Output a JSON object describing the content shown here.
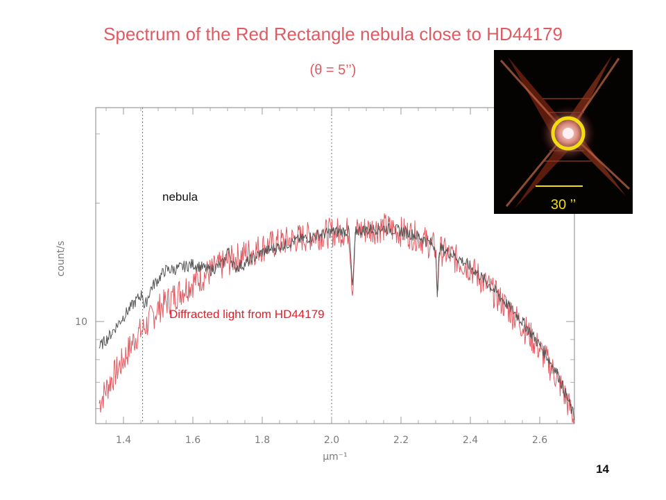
{
  "slide": {
    "title": "Spectrum of the Red Rectangle nebula close to HD44179",
    "subtitle": "(θ = 5’’)",
    "page_number": "14"
  },
  "inset": {
    "scale_label": "30 ’’",
    "circle_color": "#f3dd10",
    "description": "Image of the Red Rectangle nebula, X-shaped bipolar nebula with central star"
  },
  "chart_data": {
    "type": "line",
    "xlabel": "μm⁻¹",
    "ylabel": "count/s",
    "xlim": [
      1.32,
      2.7
    ],
    "ylim_log": [
      5.5,
      35
    ],
    "yscale": "log",
    "x_ticks": [
      "1.4",
      "1.6",
      "1.8",
      "2.0",
      "2.2",
      "2.4",
      "2.6"
    ],
    "y_ticks": [
      "10"
    ],
    "vertical_dotted_lines": [
      1.455,
      2.0
    ],
    "series": [
      {
        "name": "nebula",
        "color": "#555555",
        "points": [
          [
            1.33,
            8.6
          ],
          [
            1.36,
            9.2
          ],
          [
            1.4,
            10.3
          ],
          [
            1.44,
            11.4
          ],
          [
            1.455,
            11.8
          ],
          [
            1.46,
            10.8
          ],
          [
            1.48,
            12.2
          ],
          [
            1.5,
            12.8
          ],
          [
            1.52,
            13.5
          ],
          [
            1.55,
            13.6
          ],
          [
            1.6,
            14.0
          ],
          [
            1.65,
            13.5
          ],
          [
            1.69,
            14.1
          ],
          [
            1.7,
            15.3
          ],
          [
            1.72,
            13.7
          ],
          [
            1.75,
            14.0
          ],
          [
            1.8,
            15.0
          ],
          [
            1.9,
            16.1
          ],
          [
            2.0,
            16.9
          ],
          [
            2.05,
            17.0
          ],
          [
            2.06,
            12.0
          ],
          [
            2.07,
            17.0
          ],
          [
            2.15,
            17.3
          ],
          [
            2.2,
            17.0
          ],
          [
            2.25,
            16.5
          ],
          [
            2.3,
            15.5
          ],
          [
            2.305,
            11.0
          ],
          [
            2.31,
            15.4
          ],
          [
            2.35,
            14.8
          ],
          [
            2.4,
            13.8
          ],
          [
            2.45,
            12.5
          ],
          [
            2.5,
            11.2
          ],
          [
            2.55,
            10.0
          ],
          [
            2.6,
            8.7
          ],
          [
            2.65,
            7.4
          ],
          [
            2.7,
            5.7
          ]
        ]
      },
      {
        "name": "Diffracted light from HD44179",
        "color": "#e05a62",
        "points": [
          [
            1.33,
            6.2
          ],
          [
            1.36,
            7.0
          ],
          [
            1.4,
            8.0
          ],
          [
            1.44,
            9.3
          ],
          [
            1.455,
            9.5
          ],
          [
            1.5,
            10.8
          ],
          [
            1.55,
            11.7
          ],
          [
            1.6,
            12.6
          ],
          [
            1.65,
            13.4
          ],
          [
            1.7,
            14.2
          ],
          [
            1.75,
            14.9
          ],
          [
            1.8,
            15.5
          ],
          [
            1.9,
            16.3
          ],
          [
            2.0,
            16.9
          ],
          [
            2.05,
            17.0
          ],
          [
            2.06,
            12.0
          ],
          [
            2.07,
            17.0
          ],
          [
            2.15,
            17.4
          ],
          [
            2.2,
            17.0
          ],
          [
            2.25,
            16.5
          ],
          [
            2.3,
            15.4
          ],
          [
            2.305,
            11.0
          ],
          [
            2.31,
            15.3
          ],
          [
            2.35,
            14.6
          ],
          [
            2.4,
            13.7
          ],
          [
            2.45,
            12.3
          ],
          [
            2.5,
            11.0
          ],
          [
            2.55,
            9.8
          ],
          [
            2.6,
            8.5
          ],
          [
            2.65,
            7.2
          ],
          [
            2.7,
            5.6
          ]
        ]
      }
    ],
    "labels": {
      "nebula": "nebula",
      "diffracted": "Diffracted light from HD44179"
    }
  }
}
